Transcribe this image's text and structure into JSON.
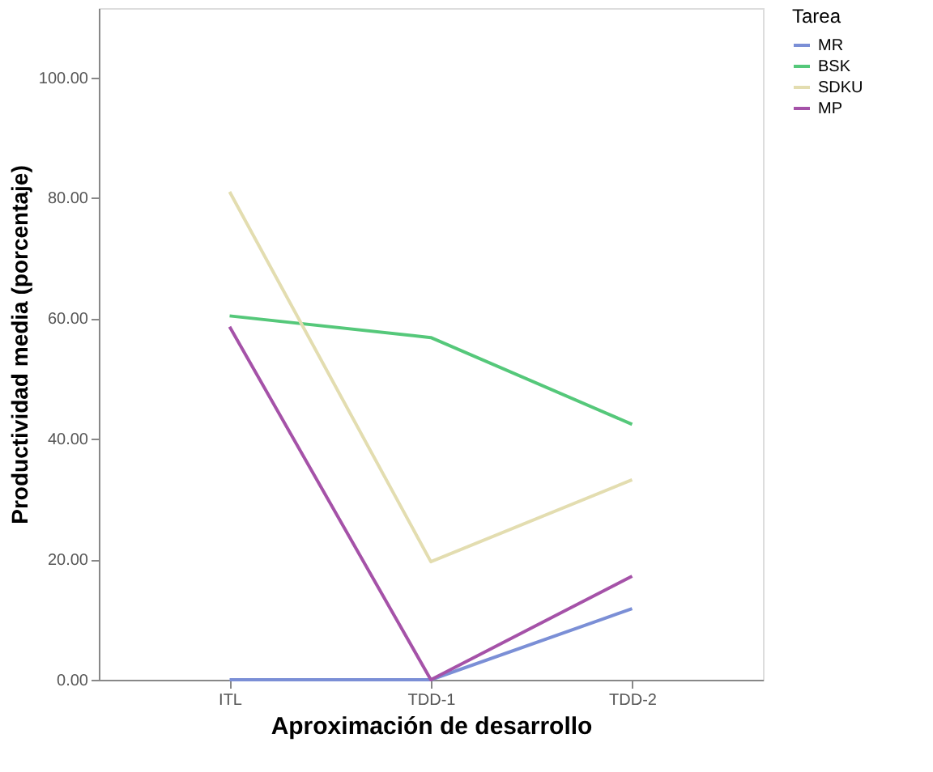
{
  "chart_data": {
    "type": "line",
    "xlabel": "Aproximación de desarrollo",
    "ylabel": "Productividad media (porcentaje)",
    "legend_title": "Tarea",
    "legend": "top right",
    "grid": false,
    "marker": "none",
    "line_style": "solid",
    "categories": [
      "ITL",
      "TDD-1",
      "TDD-2"
    ],
    "ylim": [
      0,
      111.5
    ],
    "yticks": [
      {
        "value": 0,
        "label": "0.00"
      },
      {
        "value": 20,
        "label": "20.00"
      },
      {
        "value": 40,
        "label": "40.00"
      },
      {
        "value": 60,
        "label": "60.00"
      },
      {
        "value": 80,
        "label": "80.00"
      },
      {
        "value": 100,
        "label": "100.00"
      }
    ],
    "series": [
      {
        "name": "MR",
        "color": "#7b8fd6",
        "values": [
          0,
          0,
          11.8
        ]
      },
      {
        "name": "BSK",
        "color": "#55c87a",
        "values": [
          60.4,
          56.8,
          42.4
        ]
      },
      {
        "name": "SDKU",
        "color": "#e3ddb0",
        "values": [
          81,
          19.6,
          33.2
        ]
      },
      {
        "name": "MP",
        "color": "#a552a8",
        "values": [
          58.6,
          0,
          17.2
        ]
      }
    ]
  }
}
